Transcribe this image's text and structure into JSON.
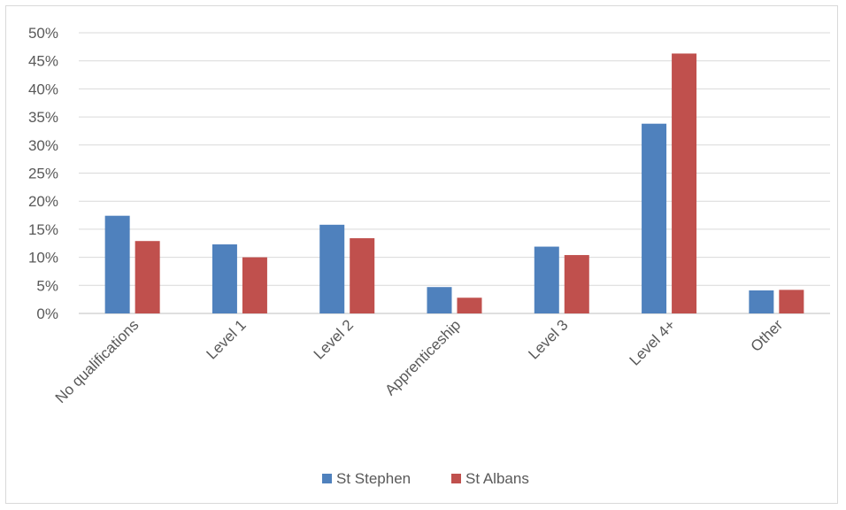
{
  "chart_data": {
    "type": "bar",
    "categories": [
      "No qualifications",
      "Level 1",
      "Level 2",
      "Apprenticeship",
      "Level 3",
      "Level 4+",
      "Other"
    ],
    "series": [
      {
        "name": "St Stephen",
        "color": "#4f81bd",
        "values": [
          17.4,
          12.3,
          15.8,
          4.7,
          11.9,
          33.8,
          4.1
        ]
      },
      {
        "name": "St Albans",
        "color": "#c0504d",
        "values": [
          12.9,
          10.0,
          13.4,
          2.8,
          10.4,
          46.3,
          4.2
        ]
      }
    ],
    "ylim": [
      0,
      50
    ],
    "yticks": [
      "0%",
      "5%",
      "10%",
      "15%",
      "20%",
      "25%",
      "30%",
      "35%",
      "40%",
      "45%",
      "50%"
    ],
    "grid": true,
    "legend": "bottom"
  }
}
